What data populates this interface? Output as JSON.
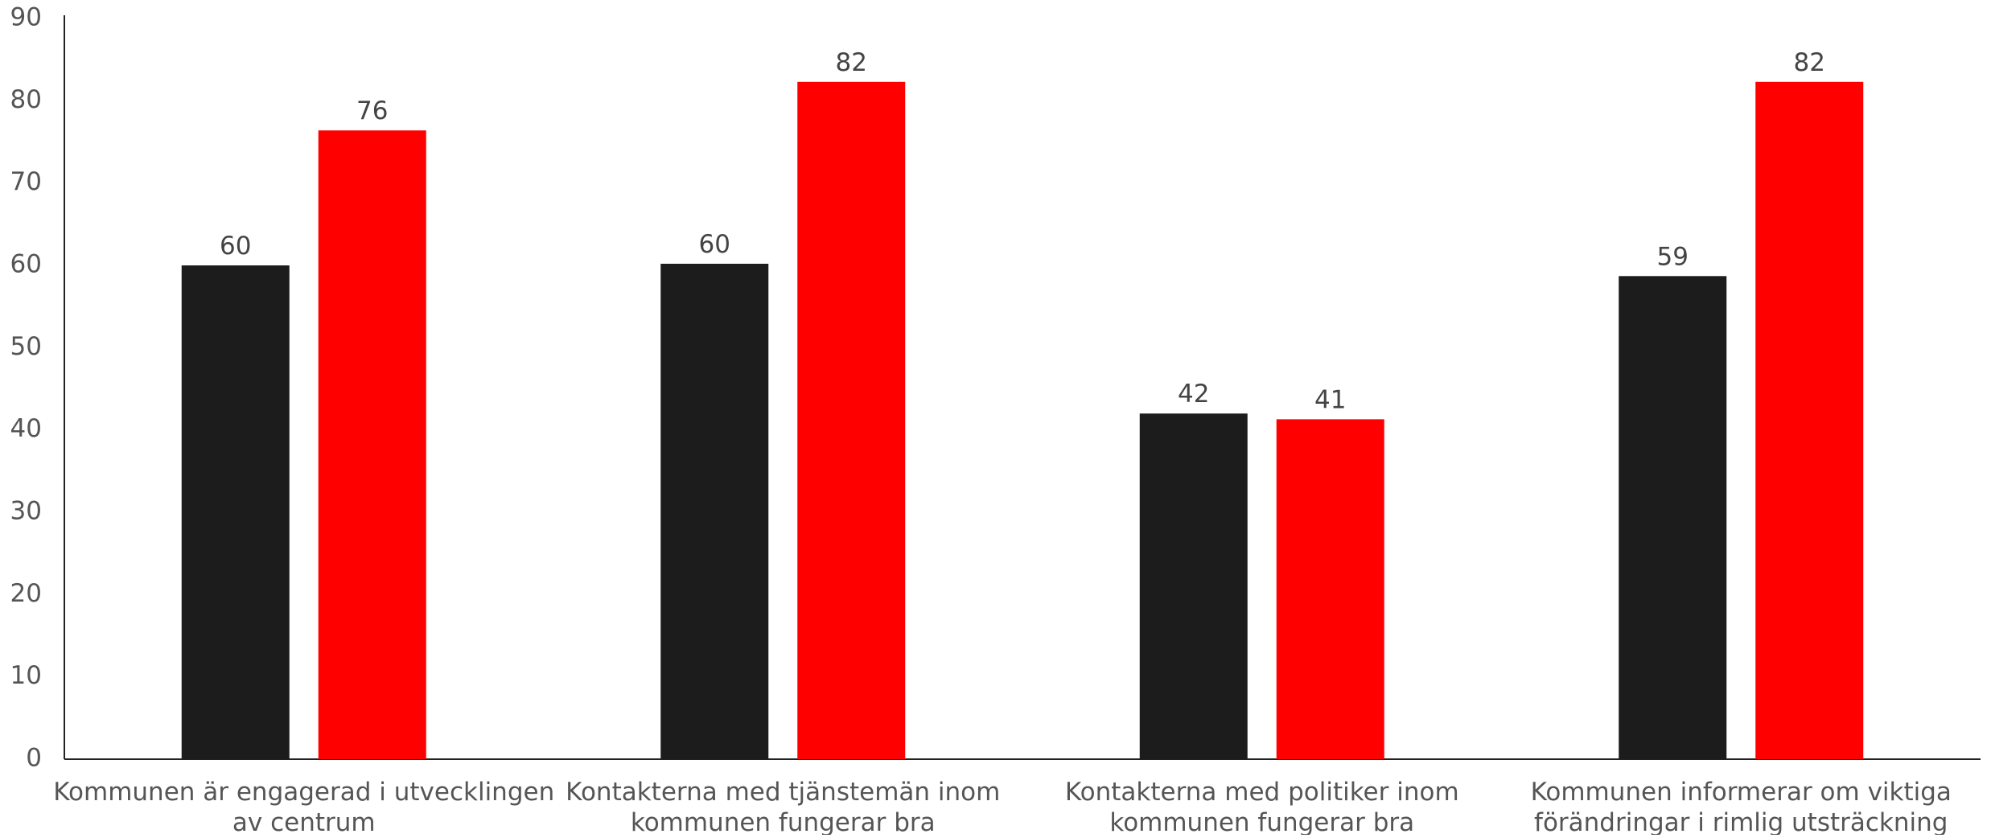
{
  "chart_data": {
    "type": "bar",
    "categories": [
      [
        "Kommunen är engagerad i utvecklingen",
        "av centrum"
      ],
      [
        "Kontakterna med tjänstemän inom",
        "kommunen fungerar bra"
      ],
      [
        "Kontakterna med politiker inom",
        "kommunen fungerar bra"
      ],
      [
        "Kommunen informerar om viktiga",
        "förändringar i rimlig utsträckning"
      ]
    ],
    "series": [
      {
        "color": "#1c1c1c",
        "values": [
          60,
          60.2,
          42,
          58.7
        ],
        "labels": [
          "60",
          "60",
          "42",
          "59"
        ]
      },
      {
        "color": "#ff0000",
        "values": [
          76.4,
          82.3,
          41.3,
          82.3
        ],
        "labels": [
          "76",
          "82",
          "41",
          "82"
        ]
      }
    ],
    "ylim": [
      0,
      90
    ],
    "yticks": [
      0,
      10,
      20,
      30,
      40,
      50,
      60,
      70,
      80,
      90
    ],
    "grid": false,
    "legend": "none",
    "title": "",
    "xlabel": "",
    "ylabel": ""
  }
}
